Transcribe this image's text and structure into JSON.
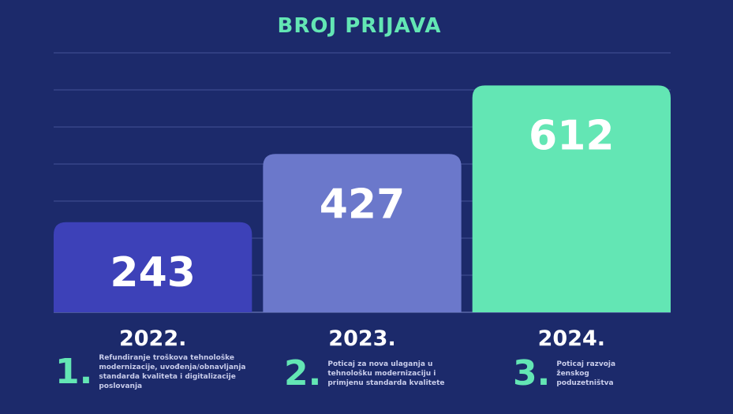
{
  "chart_data": {
    "type": "bar",
    "title": "BROJ PRIJAVA",
    "categories": [
      "2022.",
      "2023.",
      "2024."
    ],
    "values": [
      243,
      427,
      612
    ],
    "ylim": [
      0,
      700
    ],
    "grid": true,
    "bar_colors": [
      "#3d41b8",
      "#6b78cb",
      "#63e6b4"
    ]
  },
  "notes": [
    {
      "number": "1.",
      "text": "Refundiranje troškova tehnološke modernizacije, uvođenja/obnavljanja standarda kvaliteta i digitalizacije poslovanja"
    },
    {
      "number": "2.",
      "text": "Poticaj za nova ulaganja u tehnološku modernizaciju i primjenu standarda kvalitete"
    },
    {
      "number": "3.",
      "text": "Poticaj razvoja ženskog poduzetništva"
    }
  ],
  "colors": {
    "background": "#1c2a6b",
    "accent": "#63e6b4",
    "grid": "#3c4a8e"
  }
}
